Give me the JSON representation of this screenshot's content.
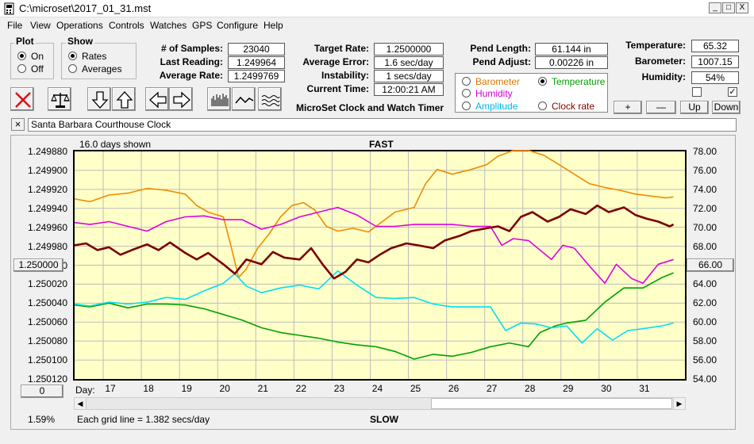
{
  "window": {
    "title": "C:\\microset\\2017_01_31.mst",
    "minimize": "_",
    "maximize": "□",
    "close": "X"
  },
  "menu": [
    "File",
    "View",
    "Operations",
    "Controls",
    "Watches",
    "GPS",
    "Configure",
    "Help"
  ],
  "plot_group": {
    "label": "Plot",
    "options": [
      "On",
      "Off"
    ],
    "selected": "On"
  },
  "show_group": {
    "label": "Show",
    "options": [
      "Rates",
      "Averages"
    ],
    "selected": "Rates"
  },
  "stats": {
    "samples_label": "# of Samples:",
    "samples": "23040",
    "last_reading_label": "Last Reading:",
    "last_reading": "1.249964",
    "average_rate_label": "Average Rate:",
    "average_rate": "1.2499769"
  },
  "targets": {
    "target_rate_label": "Target Rate:",
    "target_rate": "1.2500000",
    "average_error_label": "Average Error:",
    "average_error": "1.6 sec/day",
    "instability_label": "Instability:",
    "instability": "1 secs/day",
    "current_time_label": "Current Time:",
    "current_time": "12:00:21 AM"
  },
  "product_title": "MicroSet Clock and Watch Timer",
  "pendulum": {
    "length_label": "Pend Length:",
    "length": "61.144 in",
    "adjust_label": "Pend Adjust:",
    "adjust": "0.00226 in"
  },
  "sensor_select": {
    "options": [
      {
        "label": "Barometer",
        "color": "#e07800"
      },
      {
        "label": "Temperature",
        "color": "#00a000"
      },
      {
        "label": "Humidity",
        "color": "#d000d0"
      },
      {
        "label": "Amplitude",
        "color": "#00b8e0"
      },
      {
        "label": "Clock rate",
        "color": "#800000"
      }
    ],
    "selected": "Temperature"
  },
  "environment": {
    "temperature_label": "Temperature:",
    "temperature": "65.32",
    "barometer_label": "Barometer:",
    "barometer": "1007.15",
    "humidity_label": "Humidity:",
    "humidity": "54%",
    "check1": false,
    "check2": true
  },
  "env_buttons": [
    "+",
    "—",
    "Up",
    "Down"
  ],
  "clock_name": "Santa Barbara Courthouse Clock",
  "clock_name_close": "×",
  "chart_controls": {
    "days_shown": "16.0 days shown",
    "fast_label": "FAST",
    "slow_label": "SLOW",
    "day_label": "Day:",
    "grid_note": "Each grid line = 1.382 secs/day",
    "left_button": "1.250000",
    "right_button": "66.00",
    "bottom_button": "0",
    "percent": "1.59%"
  },
  "colors": {
    "plot_bg": "#ffffc8",
    "barometer": "#f08c00",
    "temperature": "#00a000",
    "humidity": "#e000e0",
    "amplitude": "#00e0f0",
    "clock_rate": "#7a0000"
  },
  "chart_data": {
    "type": "line",
    "title": "FAST",
    "xlabel": "Day:",
    "x_ticks": [
      "17",
      "18",
      "19",
      "20",
      "21",
      "22",
      "23",
      "24",
      "25",
      "26",
      "27",
      "28",
      "29",
      "30",
      "31"
    ],
    "xlim": [
      16.1,
      32.1
    ],
    "y_left_ticks": [
      "1.249880",
      "1.249900",
      "1.249920",
      "1.249940",
      "1.249960",
      "1.249980",
      "1.250000",
      "1.250020",
      "1.250040",
      "1.250060",
      "1.250080",
      "1.250100",
      "1.250120"
    ],
    "ylim_left": [
      1.24988,
      1.25012
    ],
    "y_right_ticks": [
      "78.00",
      "76.00",
      "74.00",
      "72.00",
      "70.00",
      "68.00",
      "66.00",
      "64.00",
      "62.00",
      "60.00",
      "58.00",
      "56.00",
      "54.00"
    ],
    "ylim_right": [
      78,
      54
    ],
    "grid": true,
    "series": [
      {
        "name": "Barometer",
        "points": [
          [
            16.1,
            73
          ],
          [
            16.5,
            72.7
          ],
          [
            17,
            73.4
          ],
          [
            17.5,
            73.6
          ],
          [
            18,
            74.1
          ],
          [
            18.5,
            73.9
          ],
          [
            19,
            73.5
          ],
          [
            19.3,
            72.3
          ],
          [
            19.6,
            71.6
          ],
          [
            20,
            71.1
          ],
          [
            20.2,
            68
          ],
          [
            20.4,
            64.7
          ],
          [
            20.6,
            65.6
          ],
          [
            20.9,
            67.8
          ],
          [
            21.2,
            69.3
          ],
          [
            21.5,
            71.1
          ],
          [
            21.8,
            72.3
          ],
          [
            22.1,
            72.6
          ],
          [
            22.4,
            71.8
          ],
          [
            22.7,
            70.1
          ],
          [
            23,
            69.6
          ],
          [
            23.4,
            69.9
          ],
          [
            23.8,
            69.5
          ],
          [
            24,
            70.1
          ],
          [
            24.5,
            71.6
          ],
          [
            25,
            72.1
          ],
          [
            25.3,
            74.6
          ],
          [
            25.6,
            76.1
          ],
          [
            26,
            75.6
          ],
          [
            26.5,
            76.1
          ],
          [
            26.9,
            76.6
          ],
          [
            27.2,
            77.5
          ],
          [
            27.6,
            78.1
          ],
          [
            28,
            78.1
          ],
          [
            28.4,
            77.6
          ],
          [
            28.8,
            76.6
          ],
          [
            29.2,
            75.6
          ],
          [
            29.6,
            74.6
          ],
          [
            30,
            74.2
          ],
          [
            30.4,
            73.9
          ],
          [
            30.8,
            73.5
          ],
          [
            31.2,
            73.3
          ],
          [
            31.6,
            73.1
          ],
          [
            31.8,
            73.2
          ]
        ]
      },
      {
        "name": "Temperature",
        "points": [
          [
            16.1,
            61.8
          ],
          [
            16.5,
            61.6
          ],
          [
            17,
            62
          ],
          [
            17.5,
            61.5
          ],
          [
            18,
            61.9
          ],
          [
            18.5,
            61.9
          ],
          [
            19,
            61.8
          ],
          [
            19.5,
            61.4
          ],
          [
            20,
            60.8
          ],
          [
            20.5,
            60.2
          ],
          [
            21,
            59.4
          ],
          [
            21.5,
            58.9
          ],
          [
            22,
            58.6
          ],
          [
            22.5,
            58.3
          ],
          [
            23,
            57.9
          ],
          [
            23.5,
            57.6
          ],
          [
            24,
            57.4
          ],
          [
            24.5,
            56.9
          ],
          [
            25,
            56.1
          ],
          [
            25.5,
            56.6
          ],
          [
            26,
            56.4
          ],
          [
            26.5,
            56.8
          ],
          [
            27,
            57.4
          ],
          [
            27.5,
            57.8
          ],
          [
            28,
            57.4
          ],
          [
            28.3,
            58.9
          ],
          [
            28.7,
            59.6
          ],
          [
            29,
            59.9
          ],
          [
            29.5,
            60.2
          ],
          [
            30,
            62.1
          ],
          [
            30.5,
            63.6
          ],
          [
            31,
            63.6
          ],
          [
            31.5,
            64.7
          ],
          [
            31.8,
            65.2
          ]
        ]
      },
      {
        "name": "Humidity",
        "points": [
          [
            16.1,
            70.5
          ],
          [
            16.5,
            70.3
          ],
          [
            17,
            70.6
          ],
          [
            17.5,
            70.1
          ],
          [
            18,
            69.6
          ],
          [
            18.5,
            70.6
          ],
          [
            19,
            71.1
          ],
          [
            19.5,
            71.2
          ],
          [
            20,
            70.8
          ],
          [
            20.5,
            70.8
          ],
          [
            21,
            69.8
          ],
          [
            21.5,
            70.3
          ],
          [
            22,
            71.1
          ],
          [
            22.5,
            71.6
          ],
          [
            23,
            72.1
          ],
          [
            23.5,
            71.3
          ],
          [
            24,
            70.1
          ],
          [
            24.5,
            70.1
          ],
          [
            25,
            70.3
          ],
          [
            25.5,
            70.3
          ],
          [
            26,
            70.3
          ],
          [
            26.5,
            70.1
          ],
          [
            27,
            70.1
          ],
          [
            27.3,
            68.1
          ],
          [
            27.6,
            68.8
          ],
          [
            28,
            68.6
          ],
          [
            28.3,
            67.6
          ],
          [
            28.6,
            66.6
          ],
          [
            28.9,
            68.1
          ],
          [
            29.2,
            67.8
          ],
          [
            29.6,
            65.9
          ],
          [
            30,
            64.1
          ],
          [
            30.3,
            66.1
          ],
          [
            30.7,
            64.6
          ],
          [
            31,
            64.1
          ],
          [
            31.4,
            66.1
          ],
          [
            31.8,
            66.6
          ]
        ]
      },
      {
        "name": "Amplitude",
        "points": [
          [
            16.1,
            61.9
          ],
          [
            16.5,
            61.7
          ],
          [
            17,
            62.1
          ],
          [
            17.5,
            61.9
          ],
          [
            18,
            62.1
          ],
          [
            18.5,
            62.6
          ],
          [
            19,
            62.4
          ],
          [
            19.5,
            63.3
          ],
          [
            20,
            64.1
          ],
          [
            20.3,
            65.1
          ],
          [
            20.6,
            63.8
          ],
          [
            21,
            63.1
          ],
          [
            21.5,
            63.6
          ],
          [
            22,
            63.9
          ],
          [
            22.5,
            63.5
          ],
          [
            23,
            65.4
          ],
          [
            23.5,
            63.9
          ],
          [
            24,
            62.6
          ],
          [
            24.5,
            62.5
          ],
          [
            25,
            62.6
          ],
          [
            25.5,
            61.9
          ],
          [
            26,
            61.6
          ],
          [
            26.5,
            61.6
          ],
          [
            27,
            61.6
          ],
          [
            27.4,
            59.1
          ],
          [
            27.8,
            59.9
          ],
          [
            28.2,
            59.8
          ],
          [
            28.6,
            59.4
          ],
          [
            29,
            59.6
          ],
          [
            29.4,
            57.8
          ],
          [
            29.8,
            59.3
          ],
          [
            30.2,
            58.1
          ],
          [
            30.6,
            59.1
          ],
          [
            31,
            59.3
          ],
          [
            31.5,
            59.6
          ],
          [
            31.8,
            59.9
          ]
        ]
      },
      {
        "name": "Clock rate",
        "points": [
          [
            16.1,
            68.1
          ],
          [
            16.4,
            68.3
          ],
          [
            16.7,
            67.6
          ],
          [
            17,
            67.9
          ],
          [
            17.3,
            67.1
          ],
          [
            17.6,
            67.6
          ],
          [
            18,
            68.2
          ],
          [
            18.3,
            67.6
          ],
          [
            18.6,
            68.4
          ],
          [
            19,
            67.3
          ],
          [
            19.3,
            66.6
          ],
          [
            19.6,
            67.3
          ],
          [
            20,
            66.1
          ],
          [
            20.3,
            65.1
          ],
          [
            20.6,
            66.6
          ],
          [
            21,
            66.1
          ],
          [
            21.3,
            67.4
          ],
          [
            21.6,
            66.8
          ],
          [
            22,
            66.6
          ],
          [
            22.3,
            67.8
          ],
          [
            22.6,
            66.1
          ],
          [
            22.9,
            64.6
          ],
          [
            23.2,
            65.3
          ],
          [
            23.5,
            66.6
          ],
          [
            23.8,
            66.3
          ],
          [
            24.1,
            67.1
          ],
          [
            24.4,
            67.8
          ],
          [
            24.8,
            68.3
          ],
          [
            25.1,
            68.1
          ],
          [
            25.5,
            67.8
          ],
          [
            25.8,
            68.6
          ],
          [
            26.2,
            69.1
          ],
          [
            26.5,
            69.6
          ],
          [
            26.9,
            69.9
          ],
          [
            27.2,
            70.1
          ],
          [
            27.5,
            69.6
          ],
          [
            27.8,
            71.1
          ],
          [
            28.1,
            71.6
          ],
          [
            28.5,
            70.6
          ],
          [
            28.8,
            71.1
          ],
          [
            29.1,
            71.9
          ],
          [
            29.5,
            71.4
          ],
          [
            29.8,
            72.3
          ],
          [
            30.1,
            71.6
          ],
          [
            30.5,
            72.1
          ],
          [
            30.8,
            71.3
          ],
          [
            31.1,
            70.9
          ],
          [
            31.4,
            70.6
          ],
          [
            31.7,
            70.1
          ],
          [
            31.8,
            70.3
          ]
        ]
      }
    ]
  }
}
